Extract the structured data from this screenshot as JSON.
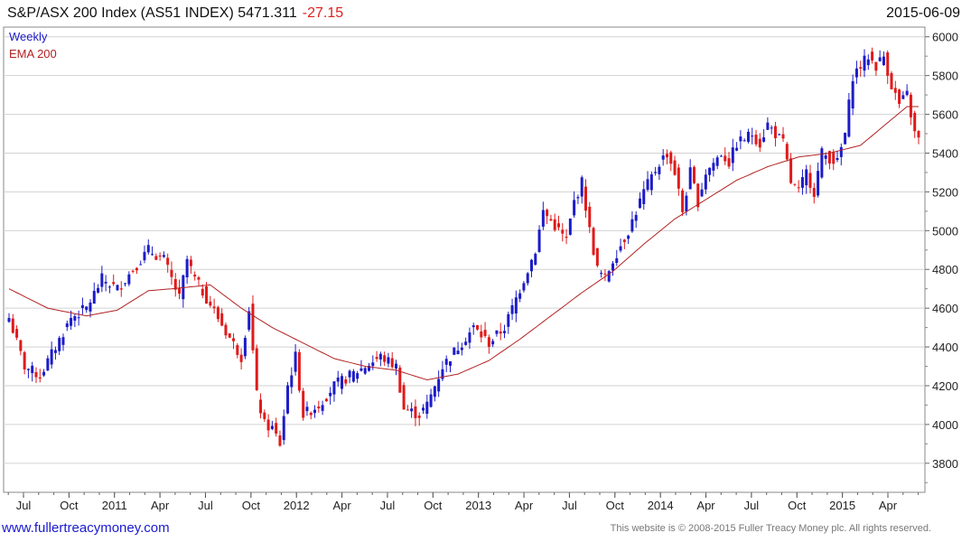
{
  "header": {
    "title": "S&P/ASX 200 Index (AS51 INDEX) 5471.311",
    "change": "-27.15",
    "date": "2015-06-09"
  },
  "footer": {
    "site": "www.fullertreacymoney.com",
    "copyright": "This website is © 2008-2015 Fuller Treacy Money plc. All rights reserved."
  },
  "colors": {
    "up": "#1c1cc8",
    "down": "#e01a1a",
    "ema": "#b22222",
    "grid": "#d2d2d2"
  },
  "chart_data": {
    "type": "candlestick",
    "legend": [
      "Weekly",
      "EMA 200"
    ],
    "ylim": [
      3650,
      6050
    ],
    "y_ticks": [
      3800,
      4000,
      4200,
      4400,
      4600,
      4800,
      5000,
      5200,
      5400,
      5600,
      5800,
      6000
    ],
    "x_ticks": [
      "Jul",
      "Oct",
      "2011",
      "Apr",
      "Jul",
      "Oct",
      "2012",
      "Apr",
      "Jul",
      "Oct",
      "2013",
      "Apr",
      "Jul",
      "Oct",
      "2014",
      "Apr",
      "Jul",
      "Oct",
      "2015",
      "Apr"
    ],
    "weekly_close_path": [
      [
        0,
        4550
      ],
      [
        4,
        4300
      ],
      [
        8,
        4250
      ],
      [
        12,
        4400
      ],
      [
        16,
        4550
      ],
      [
        20,
        4600
      ],
      [
        24,
        4750
      ],
      [
        28,
        4700
      ],
      [
        32,
        4800
      ],
      [
        36,
        4900
      ],
      [
        40,
        4850
      ],
      [
        44,
        4650
      ],
      [
        46,
        4850
      ],
      [
        48,
        4750
      ],
      [
        52,
        4620
      ],
      [
        56,
        4480
      ],
      [
        60,
        4350
      ],
      [
        62,
        4600
      ],
      [
        64,
        4150
      ],
      [
        66,
        4000
      ],
      [
        68,
        3980
      ],
      [
        70,
        3900
      ],
      [
        72,
        4200
      ],
      [
        74,
        4350
      ],
      [
        76,
        4050
      ],
      [
        80,
        4100
      ],
      [
        84,
        4200
      ],
      [
        88,
        4250
      ],
      [
        92,
        4300
      ],
      [
        96,
        4350
      ],
      [
        100,
        4300
      ],
      [
        102,
        4080
      ],
      [
        106,
        4050
      ],
      [
        108,
        4100
      ],
      [
        112,
        4300
      ],
      [
        116,
        4400
      ],
      [
        120,
        4500
      ],
      [
        124,
        4420
      ],
      [
        128,
        4500
      ],
      [
        132,
        4700
      ],
      [
        136,
        4900
      ],
      [
        138,
        5100
      ],
      [
        140,
        5050
      ],
      [
        144,
        4950
      ],
      [
        146,
        5150
      ],
      [
        148,
        5250
      ],
      [
        150,
        5000
      ],
      [
        152,
        4800
      ],
      [
        154,
        4750
      ],
      [
        156,
        4850
      ],
      [
        160,
        5000
      ],
      [
        164,
        5200
      ],
      [
        168,
        5350
      ],
      [
        170,
        5400
      ],
      [
        172,
        5300
      ],
      [
        174,
        5100
      ],
      [
        176,
        5300
      ],
      [
        178,
        5150
      ],
      [
        180,
        5300
      ],
      [
        184,
        5400
      ],
      [
        186,
        5350
      ],
      [
        188,
        5450
      ],
      [
        192,
        5500
      ],
      [
        194,
        5450
      ],
      [
        196,
        5550
      ],
      [
        198,
        5500
      ],
      [
        200,
        5450
      ],
      [
        202,
        5250
      ],
      [
        204,
        5200
      ],
      [
        206,
        5300
      ],
      [
        208,
        5200
      ],
      [
        210,
        5400
      ],
      [
        214,
        5350
      ],
      [
        216,
        5500
      ],
      [
        218,
        5800
      ],
      [
        220,
        5850
      ],
      [
        222,
        5900
      ],
      [
        224,
        5850
      ],
      [
        226,
        5900
      ],
      [
        228,
        5750
      ],
      [
        230,
        5650
      ],
      [
        232,
        5700
      ],
      [
        234,
        5500
      ],
      [
        235,
        5471
      ]
    ],
    "ema_200_path": [
      [
        0,
        4700
      ],
      [
        10,
        4600
      ],
      [
        20,
        4560
      ],
      [
        28,
        4590
      ],
      [
        36,
        4690
      ],
      [
        42,
        4700
      ],
      [
        52,
        4720
      ],
      [
        60,
        4600
      ],
      [
        68,
        4500
      ],
      [
        76,
        4420
      ],
      [
        84,
        4340
      ],
      [
        92,
        4300
      ],
      [
        100,
        4280
      ],
      [
        108,
        4230
      ],
      [
        116,
        4260
      ],
      [
        124,
        4330
      ],
      [
        132,
        4440
      ],
      [
        140,
        4560
      ],
      [
        148,
        4680
      ],
      [
        156,
        4790
      ],
      [
        164,
        4930
      ],
      [
        172,
        5060
      ],
      [
        180,
        5160
      ],
      [
        188,
        5260
      ],
      [
        196,
        5330
      ],
      [
        204,
        5380
      ],
      [
        212,
        5400
      ],
      [
        220,
        5440
      ],
      [
        226,
        5540
      ],
      [
        232,
        5640
      ],
      [
        235,
        5640
      ]
    ]
  }
}
